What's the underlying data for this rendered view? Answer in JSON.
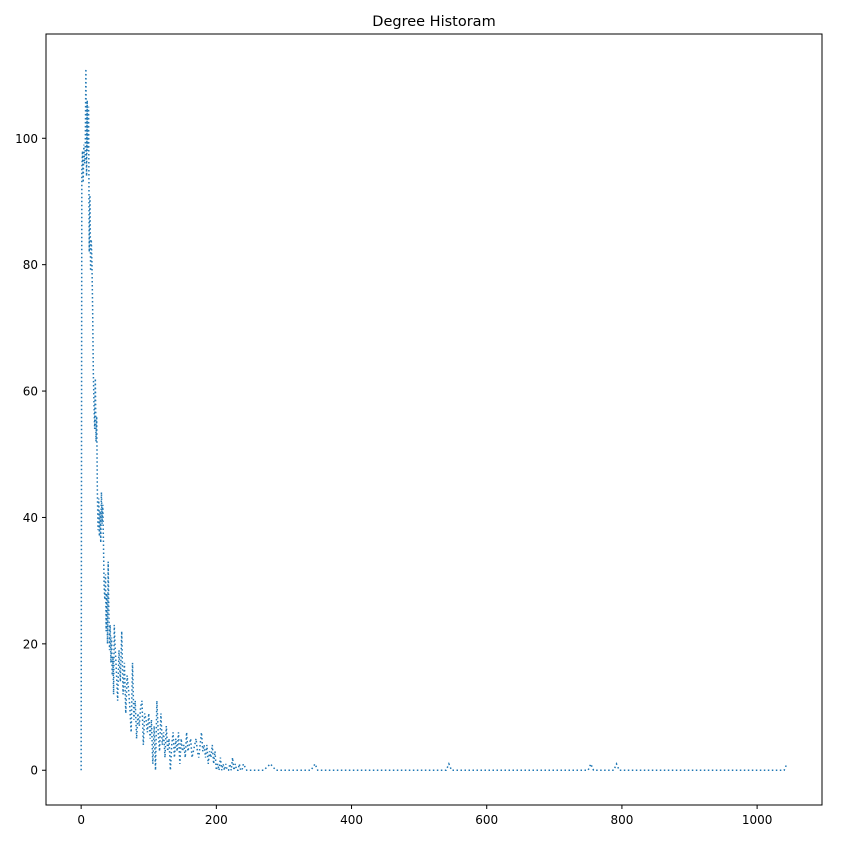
{
  "chart_data": {
    "type": "line",
    "title": "Degree Historam",
    "xlabel": "",
    "ylabel": "",
    "xlim": [
      -52,
      1096
    ],
    "ylim": [
      -5.5,
      116.5
    ],
    "xticks": [
      0,
      200,
      400,
      600,
      800,
      1000
    ],
    "yticks": [
      0,
      20,
      40,
      60,
      80,
      100
    ],
    "grid": false,
    "line_style": "dotted",
    "color": "#1f77b4",
    "series": [
      {
        "x": [
          0,
          1,
          2,
          3,
          4,
          5,
          6,
          7,
          8,
          9,
          10,
          11,
          12,
          13,
          14,
          15,
          16,
          17,
          18,
          19,
          20,
          21,
          22,
          23,
          24,
          25,
          26,
          27,
          28,
          29,
          30,
          31,
          32,
          33,
          34,
          35,
          36,
          37,
          38,
          39,
          40,
          41,
          42,
          43,
          44,
          45,
          46,
          47,
          48,
          49,
          50,
          52,
          54,
          56,
          58,
          60,
          62,
          64,
          66,
          68,
          70,
          72,
          74,
          76,
          78,
          80,
          82,
          84,
          86,
          88,
          90,
          92,
          94,
          96,
          98,
          100,
          102,
          104,
          106,
          108,
          110,
          112,
          114,
          116,
          118,
          120,
          122,
          124,
          126,
          128,
          130,
          132,
          134,
          136,
          138,
          140,
          142,
          144,
          146,
          148,
          150,
          152,
          154,
          156,
          158,
          160,
          162,
          164,
          166,
          168,
          170,
          172,
          174,
          176,
          178,
          180,
          182,
          184,
          186,
          188,
          190,
          192,
          194,
          196,
          198,
          200,
          202,
          204,
          206,
          208,
          210,
          212,
          214,
          216,
          218,
          220,
          222,
          224,
          226,
          228,
          230,
          232,
          234,
          236,
          238,
          240,
          245,
          250,
          255,
          260,
          270,
          280,
          288,
          292,
          296,
          300,
          320,
          340,
          346,
          350,
          360,
          400,
          450,
          500,
          540,
          544,
          548,
          560,
          600,
          650,
          700,
          750,
          754,
          758,
          770,
          788,
          792,
          796,
          810,
          850,
          900,
          950,
          1000,
          1040,
          1044
        ],
        "values": [
          0,
          95,
          98,
          93,
          99,
          96,
          97,
          111,
          94,
          106,
          98,
          105,
          82,
          91,
          79,
          84,
          80,
          73,
          63,
          58,
          54,
          62,
          52,
          56,
          44,
          38,
          43,
          37,
          41,
          36,
          44,
          39,
          42,
          36,
          29,
          27,
          31,
          22,
          28,
          20,
          33,
          25,
          19,
          23,
          17,
          21,
          15,
          18,
          12,
          23,
          20,
          16,
          11,
          19,
          14,
          22,
          12,
          17,
          9,
          15,
          13,
          10,
          6,
          17,
          8,
          11,
          5,
          9,
          7,
          10,
          11,
          4,
          9,
          8,
          6,
          9,
          5,
          8,
          1,
          7,
          0,
          11,
          6,
          3,
          9,
          4,
          6,
          2,
          7,
          3,
          5,
          0,
          4,
          6,
          2,
          5,
          3,
          6,
          1,
          5,
          3,
          4,
          2,
          6,
          3,
          4,
          5,
          2,
          3,
          4,
          5,
          3,
          2,
          4,
          6,
          3,
          4,
          2,
          4,
          1,
          3,
          2,
          4,
          1,
          3,
          0,
          1,
          0,
          2,
          0,
          1,
          0,
          1,
          0,
          0,
          1,
          0,
          2,
          0,
          1,
          0,
          0,
          1,
          0,
          0,
          1,
          0,
          0,
          0,
          0,
          0,
          1,
          0,
          0,
          0,
          0,
          0,
          0,
          1,
          0,
          0,
          0,
          0,
          0,
          0,
          1,
          0,
          0,
          0,
          0,
          0,
          0,
          1,
          0,
          0,
          0,
          1,
          0,
          0,
          0,
          0,
          0,
          0,
          0,
          1
        ]
      }
    ]
  }
}
